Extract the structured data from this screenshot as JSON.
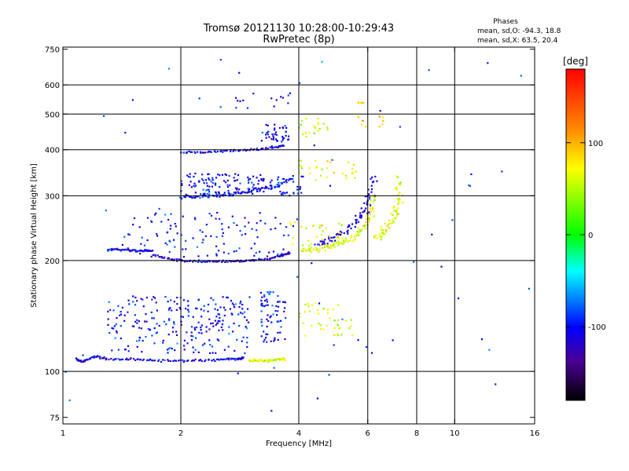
{
  "chart_data": {
    "type": "scatter",
    "title": "Tromsø 20121130 10:28:00-10:29:43",
    "subtitle": "RwPretec (8p)",
    "xlabel": "Frequency [MHz]",
    "ylabel": "Stationary phase Virtual Height [km]",
    "x_scale": "log",
    "y_scale": "log",
    "xlim": [
      1,
      16
    ],
    "ylim": [
      72,
      760
    ],
    "x_ticks": [
      1,
      2,
      4,
      6,
      8,
      10,
      16
    ],
    "x_grid": [
      2,
      4,
      6,
      8,
      10
    ],
    "y_ticks": [
      75,
      100,
      200,
      300,
      400,
      500,
      600,
      750
    ],
    "y_grid": [
      100,
      200,
      300,
      400,
      500,
      600
    ],
    "grid": true,
    "stats": {
      "heading": "Phases",
      "line1": "mean, sd,O: -94.3, 18.8",
      "line2": "mean, sd,X:  63.5, 20.4"
    },
    "colorbar": {
      "label": "[deg]",
      "range": [
        -180,
        180
      ],
      "ticks": [
        "100",
        "0",
        "-100"
      ],
      "tick_values": [
        100,
        0,
        -100
      ],
      "colors": [
        "#ff0000",
        "#ff8800",
        "#ffff00",
        "#00ff00",
        "#00ffff",
        "#0000ff",
        "#4b0096",
        "#000000"
      ]
    },
    "traces": [
      {
        "f": [
          1.08,
          1.12,
          1.2,
          1.3,
          1.5,
          1.7,
          2.0,
          2.3,
          2.6,
          2.8,
          2.9
        ],
        "h": [
          108,
          106,
          110,
          108,
          108,
          107,
          107,
          107,
          108,
          108,
          109
        ],
        "phase": -108,
        "spread": 0.008
      },
      {
        "f": [
          3.0,
          3.2,
          3.4,
          3.6,
          3.7
        ],
        "h": [
          107,
          107,
          107,
          108,
          108
        ],
        "phase": 60,
        "spread": 0.008
      },
      {
        "f": [
          1.3,
          1.4,
          1.5,
          1.6,
          1.7
        ],
        "h": [
          214,
          214,
          213,
          212,
          213
        ],
        "phase": -105,
        "spread": 0.008
      },
      {
        "f": [
          1.7,
          1.9,
          2.1,
          2.4,
          2.7,
          3.0,
          3.3,
          3.6,
          3.8
        ],
        "h": [
          207,
          201,
          199,
          199,
          199,
          200,
          202,
          206,
          210
        ],
        "phase": -118,
        "spread": 0.008
      },
      {
        "f": [
          4.1,
          4.4,
          4.8,
          5.2,
          5.6,
          5.9,
          6.1,
          6.2
        ],
        "h": [
          212,
          214,
          218,
          224,
          234,
          248,
          268,
          305
        ],
        "phase": 65,
        "spread": 0.025
      },
      {
        "f": [
          4.4,
          4.8,
          5.2,
          5.6,
          5.9,
          6.1,
          6.2
        ],
        "h": [
          222,
          230,
          240,
          254,
          272,
          300,
          340
        ],
        "phase": -110,
        "spread": 0.03
      },
      {
        "f": [
          6.3,
          6.6,
          6.9,
          7.1,
          7.2,
          7.2
        ],
        "h": [
          230,
          240,
          255,
          275,
          300,
          340
        ],
        "phase": 65,
        "spread": 0.03
      },
      {
        "f": [
          2.0,
          2.2,
          2.4,
          2.6,
          2.9,
          3.2,
          3.5,
          3.9
        ],
        "h": [
          297,
          298,
          300,
          303,
          307,
          312,
          320,
          335
        ],
        "phase": -100,
        "spread": 0.015
      },
      {
        "f": [
          2.0,
          2.3,
          2.6,
          3.0,
          3.4,
          3.7
        ],
        "h": [
          393,
          395,
          397,
          400,
          405,
          410
        ],
        "phase": -105,
        "spread": 0.008
      }
    ],
    "clusters": [
      {
        "f": [
          1.3,
          3.0
        ],
        "h": [
          112,
          160
        ],
        "n": 240,
        "phase": -100
      },
      {
        "f": [
          3.2,
          3.7
        ],
        "h": [
          120,
          165
        ],
        "n": 70,
        "phase": -95
      },
      {
        "f": [
          4.0,
          5.5
        ],
        "h": [
          125,
          155
        ],
        "n": 40,
        "phase": 60
      },
      {
        "f": [
          1.4,
          3.8
        ],
        "h": [
          205,
          270
        ],
        "n": 110,
        "phase": -100
      },
      {
        "f": [
          3.8,
          5.2
        ],
        "h": [
          215,
          255
        ],
        "n": 35,
        "phase": 65
      },
      {
        "f": [
          2.0,
          4.1
        ],
        "h": [
          300,
          345
        ],
        "n": 150,
        "phase": -100
      },
      {
        "f": [
          4.0,
          5.6
        ],
        "h": [
          330,
          375
        ],
        "n": 30,
        "phase": 65
      },
      {
        "f": [
          3.2,
          3.8
        ],
        "h": [
          420,
          470
        ],
        "n": 40,
        "phase": -110
      },
      {
        "f": [
          4.0,
          4.8
        ],
        "h": [
          430,
          490
        ],
        "n": 20,
        "phase": 60
      },
      {
        "f": [
          2.5,
          3.8
        ],
        "h": [
          510,
          570
        ],
        "n": 16,
        "phase": -95
      },
      {
        "f": [
          5.6,
          6.6
        ],
        "h": [
          450,
          540
        ],
        "n": 14,
        "phase": 90
      },
      {
        "f": [
          1.0,
          16.0
        ],
        "h": [
          75,
          740
        ],
        "n": 60,
        "phase": -90
      }
    ]
  }
}
